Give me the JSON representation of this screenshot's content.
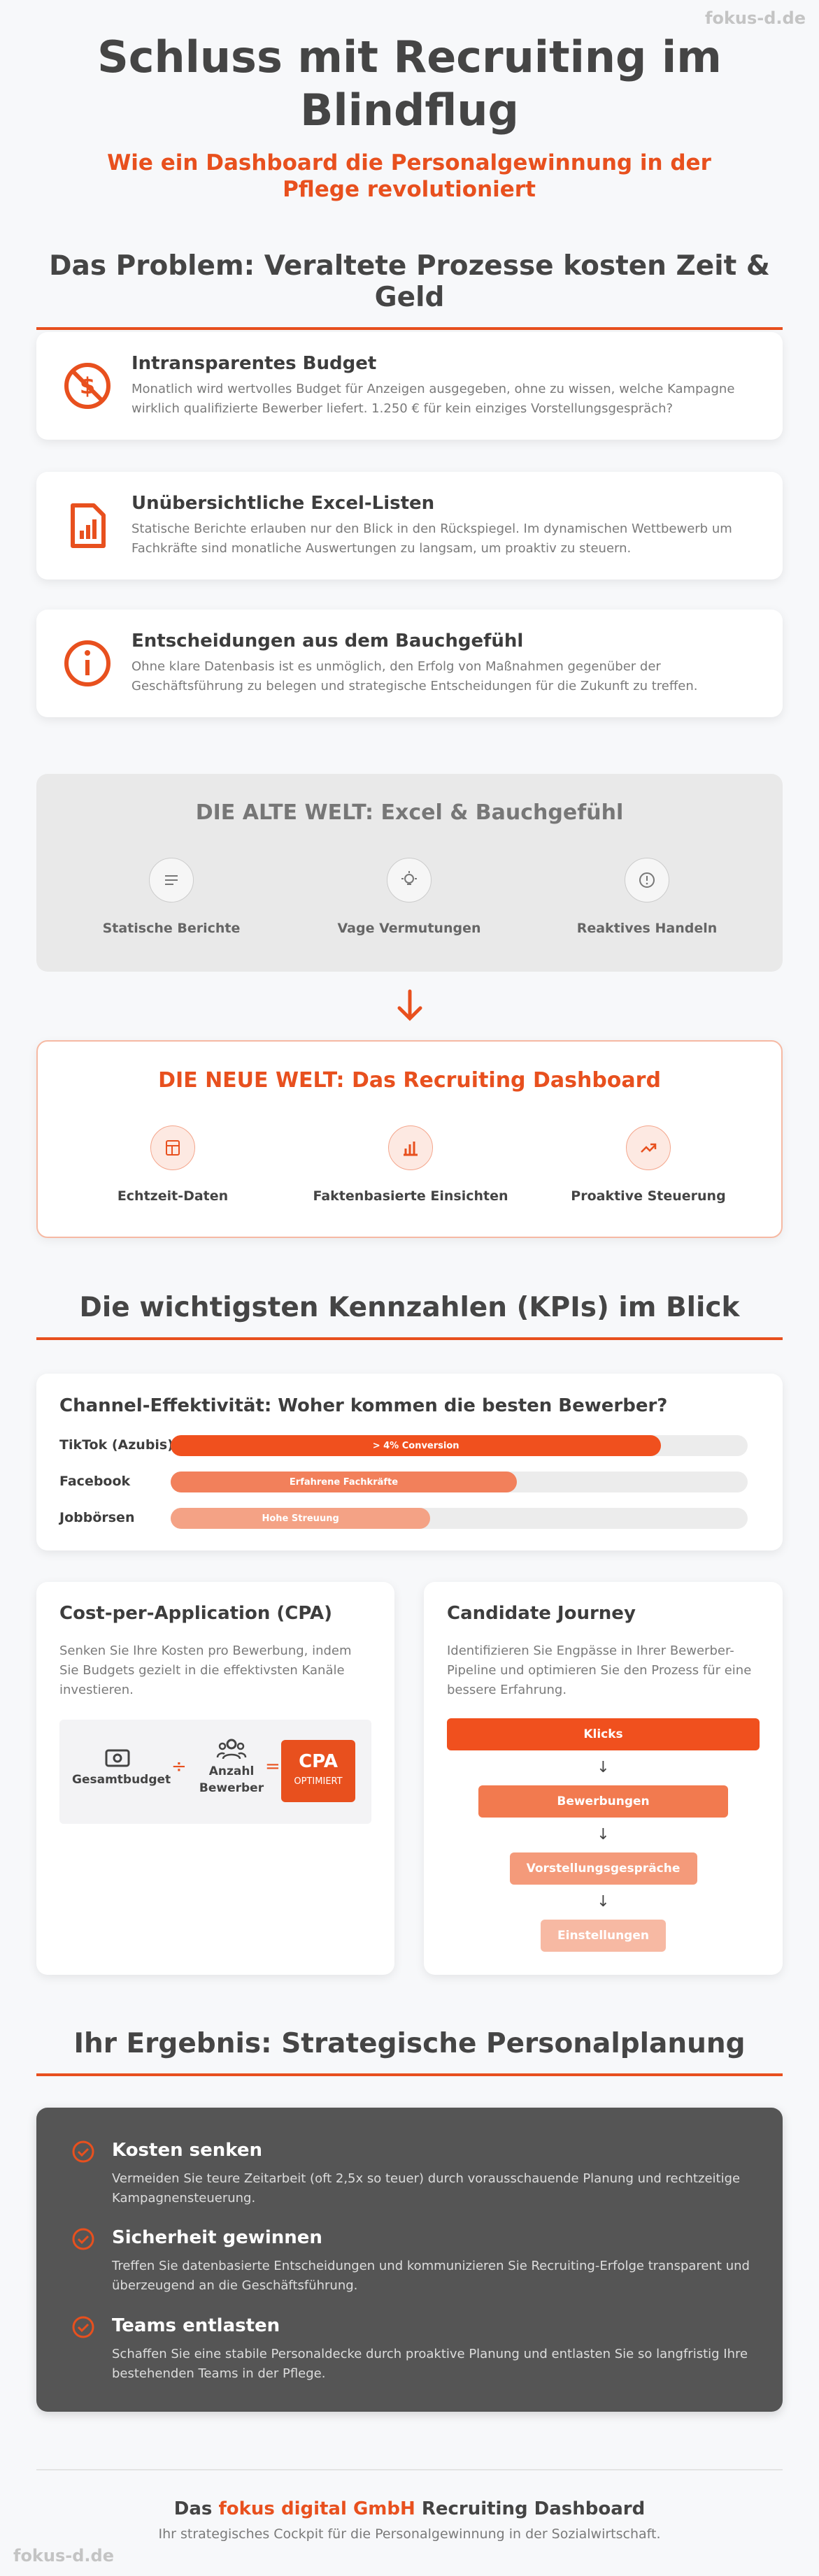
{
  "watermark_top": "fokus-d.de",
  "header": {
    "title": "Schluss mit Recruiting im Blindflug",
    "subtitle": "Wie ein Dashboard die Personalgewinnung in der Pflege revolutioniert"
  },
  "problem": {
    "heading": "Das Problem: Veraltete Prozesse kosten Zeit & Geld",
    "cards": [
      {
        "title": "Intransparentes Budget",
        "text": "Monatlich wird wertvolles Budget für Anzeigen ausgegeben, ohne zu wissen, welche Kampagne wirklich qualifizierte Bewerber liefert. 1.250 € für kein einziges Vorstellungsgespräch?"
      },
      {
        "title": "Unübersichtliche Excel-Listen",
        "text": "Statische Berichte erlauben nur den Blick in den Rückspiegel. Im dynamischen Wettbewerb um Fachkräfte sind monatliche Auswertungen zu langsam, um proaktiv zu steuern."
      },
      {
        "title": "Entscheidungen aus dem Bauchgefühl",
        "text": "Ohne klare Datenbasis ist es unmöglich, den Erfolg von Maßnahmen gegenüber der Geschäftsführung zu belegen und strategische Entscheidungen für die Zukunft zu treffen."
      }
    ]
  },
  "old_world": {
    "title": "DIE ALTE WELT: Excel & Bauchgefühl",
    "items": [
      "Statische Berichte",
      "Vage Vermutungen",
      "Reaktives Handeln"
    ]
  },
  "new_world": {
    "title": "DIE NEUE WELT: Das Recruiting Dashboard",
    "items": [
      "Echtzeit-Daten",
      "Faktenbasierte Einsichten",
      "Proaktive Steuerung"
    ]
  },
  "kpis": {
    "heading": "Die wichtigsten Kennzahlen (KPIs) im Blick",
    "channels": {
      "title": "Channel-Effektivität: Woher kommen die besten Bewerber?",
      "xlim": [
        0,
        100
      ],
      "items": [
        {
          "name": "TikTok (Azubis)",
          "value": 85,
          "label": "> 4% Conversion",
          "color": "#f0501e"
        },
        {
          "name": "Facebook",
          "value": 60,
          "label": "Erfahrene Fachkräfte",
          "color": "#f2805b"
        },
        {
          "name": "Jobbörsen",
          "value": 45,
          "label": "Hohe Streuung",
          "color": "#f4a285"
        }
      ]
    },
    "cpa": {
      "title": "Cost-per-Application (CPA)",
      "text": "Senken Sie Ihre Kosten pro Bewerbung, indem Sie Budgets gezielt in die effektivsten Kanäle investieren.",
      "budget": "Gesamtbudget",
      "divide": "÷",
      "applicants": "Anzahl Bewerber",
      "equals": "=",
      "result": "CPA",
      "result_note": "OPTIMIERT"
    },
    "journey": {
      "title": "Candidate Journey",
      "text": "Identifizieren Sie Engpässe in Ihrer Bewerber-Pipeline und optimieren Sie den Prozess für eine bessere Erfahrung.",
      "steps": [
        "Klicks",
        "Bewerbungen",
        "Vorstellungsgespräche",
        "Einstellungen"
      ]
    }
  },
  "result": {
    "heading": "Ihr Ergebnis: Strategische Personalplanung",
    "items": [
      {
        "title": "Kosten senken",
        "text": "Vermeiden Sie teure Zeitarbeit (oft 2,5x so teuer) durch vorausschauende Planung und rechtzeitige Kampagnensteuerung."
      },
      {
        "title": "Sicherheit gewinnen",
        "text": "Treffen Sie datenbasierte Entscheidungen und kommunizieren Sie Recruiting-Erfolge transparent und überzeugend an die Geschäftsführung."
      },
      {
        "title": "Teams entlasten",
        "text": "Schaffen Sie eine stabile Personaldecke durch proaktive Planung und entlasten Sie so langfristig Ihre bestehenden Teams in der Pflege."
      }
    ]
  },
  "footer": {
    "prefix": "Das",
    "brand": "fokus digital GmbH",
    "suffix": "Recruiting Dashboard",
    "text": "Ihr strategisches Cockpit für die Personalgewinnung in der Sozialwirtschaft."
  },
  "watermark_bottom": "fokus-d.de"
}
